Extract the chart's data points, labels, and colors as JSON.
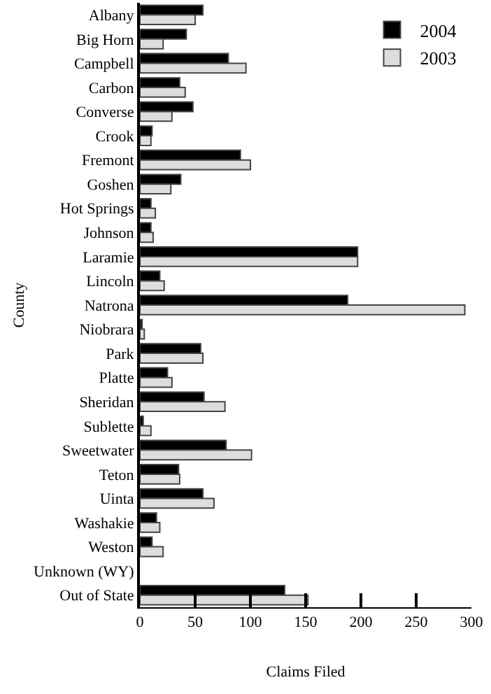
{
  "chart_data": {
    "type": "bar",
    "orientation": "horizontal",
    "xlabel": "Claims Filed",
    "ylabel": "County",
    "categories": [
      "Albany",
      "Big Horn",
      "Campbell",
      "Carbon",
      "Converse",
      "Crook",
      "Fremont",
      "Goshen",
      "Hot Springs",
      "Johnson",
      "Laramie",
      "Lincoln",
      "Natrona",
      "Niobrara",
      "Park",
      "Platte",
      "Sheridan",
      "Sublette",
      "Sweetwater",
      "Teton",
      "Uinta",
      "Washakie",
      "Weston",
      "Unknown (WY)",
      "Out of State"
    ],
    "series": [
      {
        "name": "2004",
        "color": "#000000",
        "values": [
          57,
          42,
          80,
          36,
          48,
          11,
          91,
          37,
          10,
          10,
          197,
          18,
          188,
          2,
          55,
          25,
          58,
          3,
          78,
          35,
          57,
          15,
          11,
          0,
          131
        ]
      },
      {
        "name": "2003",
        "color": "#dddddd",
        "values": [
          50,
          21,
          96,
          41,
          29,
          10,
          100,
          28,
          14,
          12,
          197,
          22,
          294,
          4,
          57,
          29,
          77,
          10,
          101,
          36,
          67,
          18,
          21,
          null,
          152
        ]
      }
    ],
    "xlim": [
      0,
      300
    ],
    "xticks": [
      0,
      50,
      100,
      150,
      200,
      250,
      300
    ],
    "legend": "top right"
  }
}
